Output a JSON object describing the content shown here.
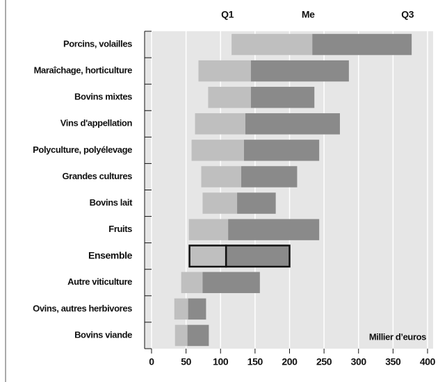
{
  "chart_data": {
    "type": "range_bar",
    "column_labels": [
      "Q1",
      "Me",
      "Q3"
    ],
    "unit_label": "Millier d’euros",
    "categories": [
      "Porcins, volailles",
      "Maraîchage, horticulture",
      "Bovins mixtes",
      "Vins d'appellation",
      "Polyculture, polyélevage",
      "Grandes cultures",
      "Bovins lait",
      "Fruits",
      "Ensemble",
      "Autre viticulture",
      "Ovins, autres herbivores",
      "Bovins viande"
    ],
    "q1": [
      116,
      68,
      82,
      63,
      58,
      72,
      74,
      54,
      55,
      43,
      33,
      34
    ],
    "median": [
      233,
      144,
      144,
      136,
      134,
      130,
      124,
      111,
      108,
      74,
      53,
      52
    ],
    "q3": [
      377,
      286,
      236,
      273,
      243,
      211,
      180,
      243,
      200,
      157,
      79,
      83
    ],
    "highlight_index": 8,
    "colors": [
      "#bfbfbf",
      "#8a8a8a"
    ],
    "xlim": [
      0,
      400
    ],
    "xticks": [
      0,
      50,
      100,
      150,
      200,
      250,
      300,
      350,
      400
    ],
    "grid": true
  }
}
